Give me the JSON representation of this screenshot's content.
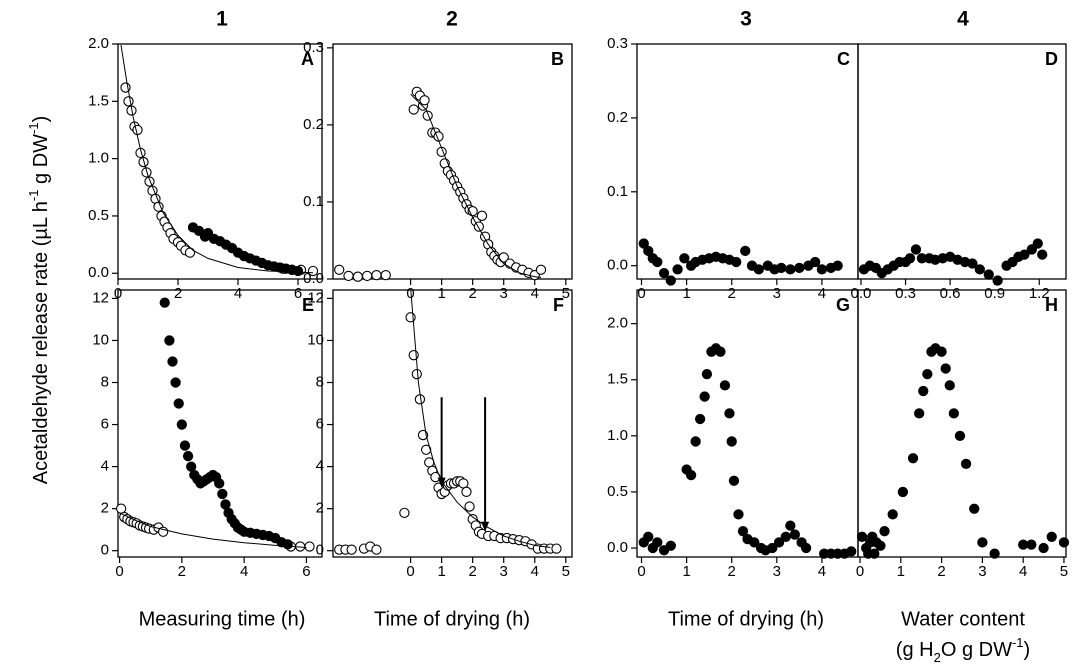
{
  "figure": {
    "column_labels": [
      "1",
      "2",
      "3",
      "4"
    ],
    "y_label": [
      "Acetaldehyde release rate (µL h",
      "-1",
      " g DW",
      "-1",
      ")"
    ],
    "x_labels": [
      [
        "Measuring time (h)"
      ],
      [
        "Time of drying (h)"
      ],
      [
        "Time of drying (h)"
      ],
      [
        "Water content"
      ]
    ],
    "x_label_extra": [
      "(g H",
      "2",
      "O  g DW",
      "-1",
      ")"
    ]
  },
  "chart_data": [
    {
      "type": "scatter",
      "label": "A",
      "xlim": [
        0,
        6.8
      ],
      "ylim": [
        -0.05,
        2.0
      ],
      "xticks": [
        0,
        2,
        4,
        6
      ],
      "yticks": [
        {
          "value": 0,
          "label": "0.0"
        },
        {
          "value": 0.5,
          "label": "0.5"
        },
        {
          "value": 1,
          "label": "1.0"
        },
        {
          "value": 1.5,
          "label": "1.5"
        },
        {
          "value": 2,
          "label": "2.0"
        }
      ],
      "series": [
        {
          "marker": "open",
          "x": [
            0.25,
            0.35,
            0.45,
            0.55,
            0.65,
            0.75,
            0.85,
            0.95,
            1.05,
            1.15,
            1.25,
            1.35,
            1.45,
            1.55,
            1.65,
            1.75,
            1.85,
            2.0,
            2.1,
            2.25,
            2.4,
            5.5,
            5.8,
            6.1,
            6.5
          ],
          "values": [
            1.62,
            1.5,
            1.42,
            1.28,
            1.25,
            1.05,
            0.97,
            0.88,
            0.8,
            0.72,
            0.65,
            0.58,
            0.5,
            0.45,
            0.4,
            0.35,
            0.3,
            0.27,
            0.24,
            0.2,
            0.18,
            0.04,
            0.03,
            0.03,
            0.02
          ]
        },
        {
          "marker": "filled",
          "x": [
            2.5,
            2.7,
            2.9,
            3.0,
            3.2,
            3.4,
            3.6,
            3.8,
            4.0,
            4.2,
            4.4,
            4.6,
            4.8,
            5.0,
            5.2,
            5.4,
            5.6,
            5.8,
            6.0
          ],
          "values": [
            0.4,
            0.37,
            0.32,
            0.35,
            0.3,
            0.28,
            0.25,
            0.22,
            0.18,
            0.15,
            0.13,
            0.11,
            0.09,
            0.07,
            0.06,
            0.05,
            0.04,
            0.03,
            0.02
          ]
        },
        {
          "marker": "line",
          "x": [
            0.1,
            0.3,
            0.5,
            0.75,
            1,
            1.5,
            2,
            2.5,
            3,
            4,
            5,
            6,
            6.5
          ],
          "values": [
            1.99,
            1.66,
            1.37,
            1.08,
            0.85,
            0.53,
            0.33,
            0.2,
            0.13,
            0.05,
            0.02,
            0.01,
            0.005
          ]
        }
      ]
    },
    {
      "type": "scatter",
      "label": "B",
      "xlim": [
        -2.5,
        5.2
      ],
      "ylim": [
        0,
        0.305
      ],
      "xticks": [
        0,
        1,
        2,
        3,
        4,
        5
      ],
      "yticks": [
        {
          "value": 0,
          "label": "0.0"
        },
        {
          "value": 0.1,
          "label": "0.1"
        },
        {
          "value": 0.2,
          "label": "0.2"
        },
        {
          "value": 0.3,
          "label": "0.3"
        }
      ],
      "series": [
        {
          "marker": "open",
          "x": [
            -2.3,
            -2.0,
            -1.7,
            -1.4,
            -1.1,
            -0.8,
            0.1,
            0.2,
            0.3,
            0.4,
            0.45,
            0.55,
            0.7,
            0.8,
            0.9,
            1.0,
            1.1,
            1.2,
            1.3,
            1.4,
            1.5,
            1.6,
            1.7,
            1.8,
            1.9,
            2.0,
            2.1,
            2.2,
            2.3,
            2.4,
            2.5,
            2.6,
            2.7,
            2.8,
            2.9,
            3.0,
            3.2,
            3.4,
            3.6,
            3.8,
            4.0,
            4.2
          ],
          "values": [
            0.012,
            0.004,
            0.003,
            0.004,
            0.005,
            0.005,
            0.22,
            0.243,
            0.238,
            0.225,
            0.232,
            0.212,
            0.19,
            0.19,
            0.185,
            0.165,
            0.15,
            0.14,
            0.135,
            0.128,
            0.12,
            0.113,
            0.105,
            0.097,
            0.09,
            0.088,
            0.075,
            0.068,
            0.082,
            0.055,
            0.045,
            0.035,
            0.03,
            0.025,
            0.022,
            0.028,
            0.02,
            0.015,
            0.012,
            0.008,
            0.005,
            0.012
          ]
        },
        {
          "marker": "line",
          "x": [
            0,
            0.5,
            1,
            1.5,
            2,
            2.5,
            3,
            3.5,
            4,
            4.2
          ],
          "values": [
            0.24,
            0.22,
            0.17,
            0.12,
            0.08,
            0.045,
            0.02,
            0.008,
            0.003,
            0.002
          ]
        }
      ]
    },
    {
      "type": "scatter",
      "label": "C",
      "xlim": [
        -0.1,
        4.8
      ],
      "ylim": [
        -0.018,
        0.3
      ],
      "xticks": [
        0,
        1,
        2,
        3,
        4
      ],
      "yticks": [
        {
          "value": 0,
          "label": "0.0"
        },
        {
          "value": 0.1,
          "label": "0.1"
        },
        {
          "value": 0.2,
          "label": "0.2"
        },
        {
          "value": 0.3,
          "label": "0.3"
        }
      ],
      "series": [
        {
          "marker": "filled",
          "x": [
            0.05,
            0.15,
            0.25,
            0.35,
            0.5,
            0.65,
            0.8,
            0.95,
            1.1,
            1.2,
            1.35,
            1.5,
            1.65,
            1.8,
            1.95,
            2.1,
            2.3,
            2.45,
            2.6,
            2.8,
            2.95,
            3.1,
            3.3,
            3.5,
            3.7,
            3.85,
            4.0,
            4.2,
            4.35
          ],
          "values": [
            0.03,
            0.02,
            0.01,
            0.005,
            -0.01,
            -0.02,
            -0.005,
            0.01,
            0,
            0.005,
            0.008,
            0.01,
            0.012,
            0.01,
            0.008,
            0.005,
            0.02,
            0,
            -0.005,
            0,
            -0.005,
            -0.003,
            -0.005,
            -0.003,
            0,
            0.005,
            -0.005,
            -0.003,
            0
          ]
        }
      ]
    },
    {
      "type": "scatter",
      "label": "D",
      "xlim": [
        -0.02,
        1.38
      ],
      "ylim": [
        -0.018,
        0.3
      ],
      "xticks": [
        {
          "value": 0,
          "label": "0.0"
        },
        {
          "value": 0.3,
          "label": "0.3"
        },
        {
          "value": 0.6,
          "label": "0.6"
        },
        {
          "value": 0.9,
          "label": "0.9"
        },
        {
          "value": 1.2,
          "label": "1.2"
        }
      ],
      "series": [
        {
          "marker": "filled",
          "x": [
            0.02,
            0.06,
            0.1,
            0.14,
            0.18,
            0.22,
            0.26,
            0.3,
            0.33,
            0.37,
            0.41,
            0.46,
            0.5,
            0.55,
            0.6,
            0.65,
            0.7,
            0.75,
            0.8,
            0.86,
            0.92,
            0.98,
            1.02,
            1.06,
            1.1,
            1.15,
            1.19,
            1.22
          ],
          "values": [
            -0.005,
            0,
            -0.003,
            -0.01,
            -0.005,
            0,
            0.005,
            0.005,
            0.01,
            0.022,
            0.01,
            0.01,
            0.008,
            0.01,
            0.012,
            0.008,
            0.005,
            0.003,
            -0.005,
            -0.012,
            -0.02,
            0,
            0.005,
            0.012,
            0.015,
            0.022,
            0.03,
            0.015
          ]
        }
      ]
    },
    {
      "type": "scatter",
      "label": "E",
      "xlim": [
        -0.05,
        6.5
      ],
      "ylim": [
        -0.3,
        12.4
      ],
      "xticks": [
        0,
        2,
        4,
        6
      ],
      "yticks": [
        0,
        2,
        4,
        6,
        8,
        10,
        12
      ],
      "series": [
        {
          "marker": "open",
          "x": [
            0.05,
            0.15,
            0.25,
            0.35,
            0.45,
            0.55,
            0.65,
            0.75,
            0.85,
            0.95,
            1.1,
            1.25,
            1.4,
            5.5,
            5.8,
            6.1
          ],
          "values": [
            2.0,
            1.6,
            1.5,
            1.4,
            1.35,
            1.3,
            1.2,
            1.15,
            1.1,
            1.05,
            1.0,
            1.1,
            0.9,
            0.2,
            0.2,
            0.2
          ]
        },
        {
          "marker": "filled",
          "x": [
            1.45,
            1.6,
            1.7,
            1.8,
            1.9,
            2.0,
            2.1,
            2.2,
            2.3,
            2.4,
            2.5,
            2.6,
            2.7,
            2.8,
            2.9,
            3.0,
            3.1,
            3.2,
            3.3,
            3.4,
            3.5,
            3.6,
            3.7,
            3.8,
            3.9,
            4.0,
            4.2,
            4.4,
            4.6,
            4.8,
            5.0,
            5.2,
            5.4
          ],
          "values": [
            11.8,
            10,
            9,
            8,
            7,
            6,
            5,
            4.5,
            4,
            3.6,
            3.4,
            3.2,
            3.3,
            3.4,
            3.5,
            3.6,
            3.5,
            3.2,
            2.7,
            2.2,
            1.8,
            1.5,
            1.3,
            1.1,
            1.0,
            0.9,
            0.85,
            0.8,
            0.75,
            0.7,
            0.6,
            0.4,
            0.3
          ]
        },
        {
          "marker": "line",
          "x": [
            0,
            0.5,
            1,
            2,
            3,
            4,
            5,
            6
          ],
          "values": [
            1.8,
            1.45,
            1.15,
            0.8,
            0.55,
            0.38,
            0.25,
            0.15
          ]
        }
      ]
    },
    {
      "type": "scatter",
      "label": "F",
      "xlim": [
        -2.5,
        5.2
      ],
      "ylim": [
        -0.3,
        12.4
      ],
      "xticks": [
        0,
        1,
        2,
        3,
        4,
        5
      ],
      "yticks": [
        0,
        2,
        4,
        6,
        8,
        10,
        12
      ],
      "arrows_x": [
        1.0,
        2.4
      ],
      "series": [
        {
          "marker": "open",
          "x": [
            -2.3,
            -2.1,
            -1.9,
            -1.5,
            -1.3,
            -1.1,
            -0.2,
            0,
            0.1,
            0.2,
            0.3,
            0.4,
            0.5,
            0.6,
            0.7,
            0.8,
            0.9,
            1.0,
            1.1,
            1.2,
            1.3,
            1.4,
            1.5,
            1.6,
            1.7,
            1.8,
            1.9,
            2.0,
            2.1,
            2.2,
            2.3,
            2.5,
            2.7,
            2.9,
            3.1,
            3.3,
            3.5,
            3.7,
            3.9,
            4.1,
            4.3,
            4.5,
            4.7
          ],
          "values": [
            0.05,
            0.05,
            0.05,
            0.1,
            0.2,
            0.05,
            1.8,
            11.1,
            9.3,
            8.4,
            7.2,
            5.5,
            4.8,
            4.2,
            3.8,
            3.5,
            3.0,
            2.7,
            2.8,
            3.1,
            3.2,
            3.2,
            3.3,
            3.3,
            3.2,
            2.8,
            2.1,
            1.5,
            1.2,
            0.9,
            0.8,
            0.7,
            0.7,
            0.6,
            0.6,
            0.55,
            0.5,
            0.45,
            0.3,
            0.1,
            0.1,
            0.1,
            0.1
          ]
        },
        {
          "marker": "line",
          "x": [
            0,
            0.25,
            0.5,
            0.75,
            1,
            1.5,
            2,
            2.5,
            3,
            3.5,
            4,
            4.5
          ],
          "values": [
            12.5,
            8,
            5.5,
            4.2,
            3.3,
            2.3,
            1.6,
            1.1,
            0.7,
            0.45,
            0.25,
            0.15
          ]
        }
      ]
    },
    {
      "type": "scatter",
      "label": "G",
      "xlim": [
        -0.1,
        4.8
      ],
      "ylim": [
        -0.08,
        2.3
      ],
      "xticks": [
        0,
        1,
        2,
        3,
        4
      ],
      "yticks": [
        {
          "value": 0,
          "label": "0.0"
        },
        {
          "value": 0.5,
          "label": "0.5"
        },
        {
          "value": 1,
          "label": "1.0"
        },
        {
          "value": 1.5,
          "label": "1.5"
        },
        {
          "value": 2,
          "label": "2.0"
        }
      ],
      "series": [
        {
          "marker": "filled",
          "x": [
            0.05,
            0.15,
            0.25,
            0.35,
            0.5,
            0.65,
            1.0,
            1.1,
            1.2,
            1.3,
            1.4,
            1.45,
            1.55,
            1.65,
            1.75,
            1.85,
            1.95,
            2.0,
            2.05,
            2.15,
            2.25,
            2.35,
            2.5,
            2.65,
            2.75,
            2.9,
            3.05,
            3.2,
            3.3,
            3.4,
            3.55,
            3.65,
            4.05,
            4.2,
            4.35,
            4.5,
            4.65
          ],
          "values": [
            0.05,
            0.1,
            0,
            0.05,
            -0.02,
            0.02,
            0.7,
            0.65,
            0.95,
            1.15,
            1.35,
            1.55,
            1.75,
            1.78,
            1.75,
            1.45,
            1.2,
            0.95,
            0.6,
            0.3,
            0.15,
            0.08,
            0.05,
            0,
            -0.02,
            0,
            0.05,
            0.1,
            0.2,
            0.12,
            0.05,
            0,
            -0.05,
            -0.05,
            -0.05,
            -0.05,
            -0.03
          ]
        }
      ]
    },
    {
      "type": "scatter",
      "label": "H",
      "xlim": [
        -0.05,
        5.05
      ],
      "ylim": [
        -0.08,
        2.3
      ],
      "xticks": [
        0,
        1,
        2,
        3,
        4,
        5
      ],
      "series": [
        {
          "marker": "filled",
          "x": [
            0.05,
            0.15,
            0.2,
            0.25,
            0.3,
            0.35,
            0.4,
            0.5,
            0.6,
            0.8,
            1.05,
            1.3,
            1.45,
            1.55,
            1.65,
            1.75,
            1.85,
            2.0,
            2.1,
            2.2,
            2.3,
            2.45,
            2.6,
            2.8,
            3.0,
            3.3,
            4.0,
            4.2,
            4.5,
            4.7,
            5.0
          ],
          "values": [
            0.1,
            0,
            -0.05,
            0.05,
            0.1,
            -0.05,
            0.05,
            0.02,
            0.15,
            0.3,
            0.5,
            0.8,
            1.2,
            1.4,
            1.55,
            1.75,
            1.78,
            1.75,
            1.6,
            1.45,
            1.2,
            1.0,
            0.75,
            0.35,
            0.05,
            -0.05,
            0.03,
            0.03,
            0,
            0.1,
            0.05
          ]
        }
      ]
    }
  ]
}
